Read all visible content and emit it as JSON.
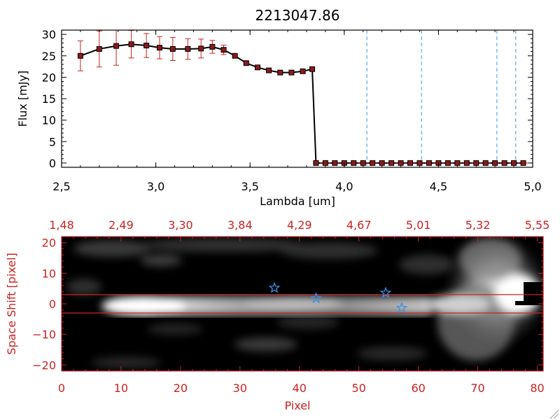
{
  "colors": {
    "axis": "#000000",
    "accent_red": "#cc2222",
    "marker_fill": "#8b1a1a",
    "dashed_blue": "#3399ee",
    "star_blue": "#3a8fe8"
  },
  "chart_data": [
    {
      "type": "line",
      "title": "2213047.86",
      "xlabel": "Lambda [um]",
      "ylabel": "Flux [mJy]",
      "xlim": [
        2.5,
        5.0
      ],
      "ylim": [
        -1,
        31
      ],
      "x_ticks": [
        2.5,
        3.0,
        3.5,
        4.0,
        4.5,
        5.0
      ],
      "x_tick_labels": [
        "2,5",
        "3,0",
        "3,5",
        "4,0",
        "4,5",
        "5,0"
      ],
      "y_ticks": [
        0,
        5,
        10,
        15,
        20,
        25,
        30
      ],
      "y_tick_labels": [
        "0",
        "5",
        "10",
        "15",
        "20",
        "25",
        "30"
      ],
      "series": [
        {
          "name": "flux",
          "x": [
            2.6,
            2.7,
            2.79,
            2.87,
            2.95,
            3.02,
            3.09,
            3.17,
            3.24,
            3.3,
            3.36,
            3.42,
            3.48,
            3.54,
            3.6,
            3.66,
            3.72,
            3.78,
            3.83,
            3.85,
            3.9,
            3.95,
            4.0,
            4.05,
            4.1,
            4.15,
            4.2,
            4.25,
            4.3,
            4.35,
            4.4,
            4.45,
            4.5,
            4.55,
            4.6,
            4.65,
            4.7,
            4.75,
            4.8,
            4.85,
            4.9,
            4.95
          ],
          "y": [
            25.0,
            26.6,
            27.3,
            27.7,
            27.4,
            26.9,
            26.6,
            26.6,
            26.7,
            27.1,
            26.4,
            25.0,
            23.3,
            22.3,
            21.6,
            21.1,
            21.1,
            21.4,
            21.9,
            0,
            0,
            0,
            0,
            0,
            0,
            0,
            0,
            0,
            0,
            0,
            0,
            0,
            0,
            0,
            0,
            0,
            0,
            0,
            0,
            0,
            0,
            0
          ],
          "yerr": [
            3.5,
            4.2,
            4.5,
            3.2,
            2.8,
            2.6,
            2.7,
            2.4,
            2.2,
            1.5,
            1.1,
            0.3,
            0.3,
            0.3,
            0.3,
            0.3,
            0.3,
            0.3,
            0.3,
            0,
            0,
            0,
            0,
            0,
            0,
            0,
            0,
            0,
            0,
            0,
            0,
            0,
            0,
            0,
            0,
            0,
            0,
            0,
            0,
            0,
            0,
            0
          ]
        }
      ],
      "vertical_dashed_lines_x": [
        4.12,
        4.41,
        4.81,
        4.91
      ]
    },
    {
      "type": "heatmap",
      "xlabel": "Pixel",
      "ylabel": "Space Shift [pixel]",
      "xlim": [
        0,
        81
      ],
      "ylim": [
        -22,
        22
      ],
      "x_ticks": [
        0,
        10,
        20,
        30,
        40,
        50,
        60,
        70,
        80
      ],
      "x_tick_labels": [
        "0",
        "10",
        "20",
        "30",
        "40",
        "50",
        "60",
        "70",
        "80"
      ],
      "y_ticks": [
        -20,
        -10,
        0,
        10,
        20
      ],
      "y_tick_labels": [
        "−20",
        "−10",
        "0",
        "10",
        "20"
      ],
      "top_axis_ticks": [
        0,
        10,
        20,
        30,
        40,
        50,
        60,
        70,
        80
      ],
      "top_axis_labels": [
        "1,48",
        "2,49",
        "3,30",
        "3,84",
        "4,29",
        "4,67",
        "5,01",
        "5,32",
        "5,55"
      ],
      "horizontal_lines_y": [
        3,
        -3
      ],
      "stars": [
        {
          "x": 35.8,
          "y": 5.2
        },
        {
          "x": 42.8,
          "y": 1.8
        },
        {
          "x": 54.5,
          "y": 3.6
        },
        {
          "x": 57.2,
          "y": -1.4
        }
      ]
    }
  ]
}
